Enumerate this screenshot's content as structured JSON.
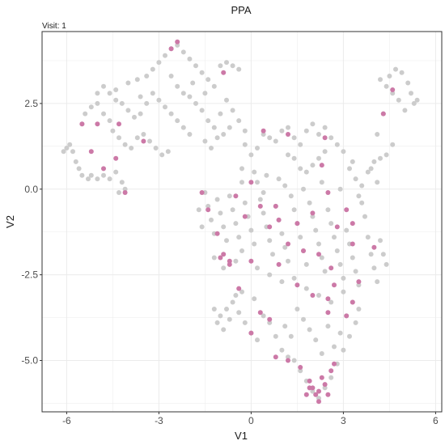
{
  "chart_data": {
    "type": "scatter",
    "title": "PPA",
    "subtitle": "Visit: 1",
    "xlabel": "V1",
    "ylabel": "V2",
    "xlim": [
      -6.8,
      6.2
    ],
    "ylim": [
      -6.5,
      4.6
    ],
    "xticks": [
      -6,
      -3,
      0,
      3,
      6
    ],
    "xtick_labels": [
      "-6",
      "-3",
      "0",
      "3",
      "6"
    ],
    "yticks": [
      -5.0,
      -2.5,
      0.0,
      2.5
    ],
    "ytick_labels": [
      "-5.0",
      "-2.5",
      "0.0",
      "2.5"
    ],
    "grid": true,
    "legend": "none",
    "colors": {
      "background": "#cccccc",
      "highlight": "#cc79a7",
      "grid": "#ebebeb",
      "panel_border": "#333333"
    },
    "background_points": [
      [
        -6.0,
        1.2
      ],
      [
        -6.1,
        1.1
      ],
      [
        -5.9,
        1.3
      ],
      [
        -5.8,
        1.1
      ],
      [
        -5.7,
        0.8
      ],
      [
        -5.6,
        0.6
      ],
      [
        -5.5,
        0.4
      ],
      [
        -5.3,
        0.3
      ],
      [
        -5.2,
        0.4
      ],
      [
        -5.0,
        0.3
      ],
      [
        -4.8,
        0.4
      ],
      [
        -4.6,
        0.3
      ],
      [
        -4.4,
        0.5
      ],
      [
        -4.2,
        0.2
      ],
      [
        -4.1,
        0.0
      ],
      [
        -4.3,
        -0.1
      ],
      [
        -5.5,
        1.9
      ],
      [
        -5.4,
        2.2
      ],
      [
        -5.2,
        2.4
      ],
      [
        -5.0,
        2.5
      ],
      [
        -4.8,
        2.2
      ],
      [
        -4.6,
        2.0
      ],
      [
        -4.5,
        1.7
      ],
      [
        -4.3,
        1.5
      ],
      [
        -4.1,
        1.3
      ],
      [
        -3.9,
        1.2
      ],
      [
        -3.7,
        1.5
      ],
      [
        -3.5,
        1.6
      ],
      [
        -3.3,
        1.4
      ],
      [
        -3.1,
        1.2
      ],
      [
        -2.9,
        1.0
      ],
      [
        -2.7,
        1.1
      ],
      [
        -5.0,
        2.8
      ],
      [
        -4.8,
        3.0
      ],
      [
        -4.6,
        2.8
      ],
      [
        -4.4,
        2.6
      ],
      [
        -4.2,
        2.5
      ],
      [
        -4.0,
        2.3
      ],
      [
        -3.8,
        2.1
      ],
      [
        -3.6,
        2.2
      ],
      [
        -4.0,
        3.1
      ],
      [
        -3.7,
        3.2
      ],
      [
        -3.4,
        3.3
      ],
      [
        -3.2,
        3.5
      ],
      [
        -3.0,
        3.7
      ],
      [
        -2.8,
        3.9
      ],
      [
        -2.6,
        4.1
      ],
      [
        -2.4,
        4.2
      ],
      [
        -2.2,
        4.0
      ],
      [
        -2.0,
        3.8
      ],
      [
        -1.8,
        3.6
      ],
      [
        -1.6,
        3.4
      ],
      [
        -1.4,
        3.2
      ],
      [
        -1.2,
        3.0
      ],
      [
        -1.0,
        3.6
      ],
      [
        -0.8,
        3.7
      ],
      [
        -0.6,
        3.6
      ],
      [
        -0.4,
        3.5
      ],
      [
        -3.2,
        2.8
      ],
      [
        -3.0,
        2.6
      ],
      [
        -2.8,
        2.4
      ],
      [
        -2.6,
        2.2
      ],
      [
        -2.4,
        2.0
      ],
      [
        -2.2,
        1.8
      ],
      [
        -2.0,
        1.6
      ],
      [
        -1.8,
        2.5
      ],
      [
        -1.6,
        2.3
      ],
      [
        -1.4,
        2.0
      ],
      [
        -1.2,
        1.8
      ],
      [
        -1.0,
        2.2
      ],
      [
        -0.8,
        2.6
      ],
      [
        -0.6,
        2.3
      ],
      [
        -0.4,
        2.0
      ],
      [
        -0.2,
        1.7
      ],
      [
        -1.5,
        1.4
      ],
      [
        -1.3,
        1.2
      ],
      [
        -1.1,
        1.5
      ],
      [
        -0.9,
        1.6
      ],
      [
        -0.7,
        1.8
      ],
      [
        -3.6,
        2.7
      ],
      [
        -3.4,
        2.5
      ],
      [
        -4.4,
        2.9
      ],
      [
        -2.6,
        3.3
      ],
      [
        -2.4,
        3.0
      ],
      [
        -2.2,
        2.8
      ],
      [
        -2.0,
        2.7
      ],
      [
        -1.9,
        3.1
      ],
      [
        -1.5,
        2.8
      ],
      [
        0.4,
        1.6
      ],
      [
        0.6,
        1.5
      ],
      [
        0.8,
        1.4
      ],
      [
        1.0,
        1.7
      ],
      [
        1.2,
        1.8
      ],
      [
        1.4,
        1.5
      ],
      [
        1.6,
        1.3
      ],
      [
        1.8,
        1.7
      ],
      [
        2.0,
        1.9
      ],
      [
        2.2,
        1.6
      ],
      [
        2.4,
        1.8
      ],
      [
        2.6,
        1.5
      ],
      [
        2.8,
        1.3
      ],
      [
        3.0,
        1.1
      ],
      [
        2.4,
        1.1
      ],
      [
        2.2,
        0.9
      ],
      [
        2.0,
        0.7
      ],
      [
        1.8,
        0.5
      ],
      [
        1.6,
        0.6
      ],
      [
        1.4,
        0.9
      ],
      [
        1.2,
        1.0
      ],
      [
        0.2,
        1.2
      ],
      [
        0.0,
        1.0
      ],
      [
        -0.2,
        1.3
      ],
      [
        3.2,
        0.6
      ],
      [
        3.4,
        0.3
      ],
      [
        3.6,
        0.1
      ],
      [
        3.8,
        0.5
      ],
      [
        4.0,
        0.8
      ],
      [
        4.2,
        0.9
      ],
      [
        4.4,
        1.0
      ],
      [
        4.6,
        1.3
      ],
      [
        4.3,
        2.2
      ],
      [
        4.5,
        3.3
      ],
      [
        4.7,
        3.5
      ],
      [
        4.9,
        3.4
      ],
      [
        5.1,
        3.1
      ],
      [
        5.2,
        2.8
      ],
      [
        5.3,
        2.5
      ],
      [
        5.0,
        2.3
      ],
      [
        4.8,
        2.6
      ],
      [
        4.6,
        2.8
      ],
      [
        4.4,
        3.0
      ],
      [
        4.2,
        3.2
      ],
      [
        5.4,
        2.6
      ],
      [
        4.1,
        1.6
      ],
      [
        3.9,
        0.6
      ],
      [
        3.3,
        0.8
      ],
      [
        -1.5,
        -0.1
      ],
      [
        -1.4,
        -0.5
      ],
      [
        -1.3,
        -0.9
      ],
      [
        -1.2,
        -1.3
      ],
      [
        -1.1,
        -0.3
      ],
      [
        -1.0,
        -0.7
      ],
      [
        -0.9,
        -1.1
      ],
      [
        -0.8,
        -1.5
      ],
      [
        -0.7,
        -0.2
      ],
      [
        -0.6,
        -0.6
      ],
      [
        -0.5,
        -1.0
      ],
      [
        -0.4,
        -1.4
      ],
      [
        -0.3,
        -1.8
      ],
      [
        -0.2,
        -0.4
      ],
      [
        -0.1,
        -0.8
      ],
      [
        0.0,
        -1.2
      ],
      [
        0.1,
        -1.6
      ],
      [
        0.2,
        0.2
      ],
      [
        0.3,
        -0.3
      ],
      [
        0.4,
        -0.7
      ],
      [
        0.5,
        -1.1
      ],
      [
        0.6,
        -1.5
      ],
      [
        0.7,
        -1.9
      ],
      [
        0.8,
        -0.5
      ],
      [
        0.9,
        -0.9
      ],
      [
        1.0,
        -1.3
      ],
      [
        1.1,
        -1.7
      ],
      [
        1.2,
        -2.1
      ],
      [
        1.3,
        -0.2
      ],
      [
        1.4,
        -0.6
      ],
      [
        1.5,
        -1.0
      ],
      [
        1.6,
        -1.4
      ],
      [
        1.7,
        -1.8
      ],
      [
        1.8,
        -2.2
      ],
      [
        1.9,
        -0.4
      ],
      [
        2.0,
        -0.8
      ],
      [
        2.1,
        -1.2
      ],
      [
        2.2,
        -1.6
      ],
      [
        2.3,
        -2.0
      ],
      [
        2.4,
        -2.4
      ],
      [
        2.5,
        -0.6
      ],
      [
        2.6,
        -1.0
      ],
      [
        2.7,
        -1.4
      ],
      [
        2.8,
        -1.8
      ],
      [
        2.9,
        -2.2
      ],
      [
        3.0,
        -2.6
      ],
      [
        3.1,
        -1.2
      ],
      [
        3.2,
        -1.6
      ],
      [
        3.3,
        -2.0
      ],
      [
        3.4,
        -2.4
      ],
      [
        3.5,
        -2.8
      ],
      [
        3.6,
        -0.4
      ],
      [
        3.7,
        -0.8
      ],
      [
        3.8,
        -1.4
      ],
      [
        3.9,
        -1.9
      ],
      [
        4.0,
        -2.3
      ],
      [
        4.1,
        -2.7
      ],
      [
        4.2,
        -1.5
      ],
      [
        4.3,
        -1.9
      ],
      [
        4.4,
        -2.2
      ],
      [
        -1.2,
        -2.0
      ],
      [
        -0.9,
        -2.3
      ],
      [
        -0.5,
        -2.1
      ],
      [
        0.2,
        -2.3
      ],
      [
        0.6,
        -2.5
      ],
      [
        1.0,
        -2.7
      ],
      [
        1.4,
        -2.6
      ],
      [
        1.8,
        -2.9
      ],
      [
        2.2,
        -3.1
      ],
      [
        2.6,
        -3.3
      ],
      [
        3.0,
        -3.0
      ],
      [
        -0.3,
        0.6
      ],
      [
        0.1,
        0.5
      ],
      [
        0.5,
        0.4
      ],
      [
        0.9,
        0.3
      ],
      [
        -1.7,
        -0.6
      ],
      [
        -1.6,
        -1.1
      ],
      [
        -0.3,
        -3.0
      ],
      [
        -0.5,
        -3.1
      ],
      [
        0.1,
        -3.2
      ],
      [
        -1.0,
        -3.7
      ],
      [
        -0.8,
        -3.5
      ],
      [
        -0.6,
        -3.3
      ],
      [
        -0.4,
        -3.6
      ],
      [
        -0.2,
        -3.9
      ],
      [
        0.0,
        -4.2
      ],
      [
        0.2,
        -4.4
      ],
      [
        -1.1,
        -3.9
      ],
      [
        -0.9,
        -4.1
      ],
      [
        -1.2,
        -3.5
      ],
      [
        -0.7,
        -3.8
      ],
      [
        0.4,
        -3.7
      ],
      [
        0.6,
        -3.9
      ],
      [
        0.8,
        -4.3
      ],
      [
        1.0,
        -4.7
      ],
      [
        1.2,
        -4.9
      ],
      [
        1.4,
        -5.0
      ],
      [
        1.6,
        -5.3
      ],
      [
        1.8,
        -5.6
      ],
      [
        2.0,
        -5.9
      ],
      [
        2.2,
        -6.1
      ],
      [
        2.4,
        -5.8
      ],
      [
        2.6,
        -5.5
      ],
      [
        2.8,
        -5.1
      ],
      [
        3.0,
        -4.7
      ],
      [
        3.2,
        -4.3
      ],
      [
        3.4,
        -3.9
      ],
      [
        3.1,
        -3.7
      ],
      [
        2.9,
        -4.2
      ],
      [
        2.7,
        -4.6
      ],
      [
        1.5,
        -3.5
      ],
      [
        1.7,
        -3.8
      ],
      [
        1.9,
        -4.1
      ],
      [
        2.1,
        -4.4
      ],
      [
        2.3,
        -4.8
      ],
      [
        1.3,
        -4.3
      ],
      [
        1.1,
        -4.0
      ],
      [
        3.5,
        -3.5
      ],
      [
        3.3,
        -3.3
      ],
      [
        2.5,
        -4.0
      ],
      [
        -0.3,
        0.2
      ],
      [
        0.4,
        -0.1
      ],
      [
        1.1,
        0.1
      ],
      [
        1.7,
        0.0
      ],
      [
        2.3,
        0.2
      ],
      [
        2.9,
        0.0
      ],
      [
        3.5,
        -0.2
      ],
      [
        4.1,
        0.2
      ]
    ],
    "highlight_points": [
      [
        -5.5,
        1.9
      ],
      [
        -5.2,
        1.1
      ],
      [
        -5.0,
        1.9
      ],
      [
        -4.8,
        0.6
      ],
      [
        -4.4,
        0.9
      ],
      [
        -4.1,
        -0.1
      ],
      [
        -4.3,
        1.9
      ],
      [
        -3.5,
        1.4
      ],
      [
        -2.6,
        4.1
      ],
      [
        -2.4,
        4.3
      ],
      [
        -0.9,
        3.4
      ],
      [
        0.4,
        1.7
      ],
      [
        1.2,
        1.6
      ],
      [
        2.4,
        1.5
      ],
      [
        4.3,
        2.2
      ],
      [
        4.6,
        2.9
      ],
      [
        -1.6,
        -0.1
      ],
      [
        -1.4,
        -0.6
      ],
      [
        -1.1,
        -1.3
      ],
      [
        -0.9,
        -1.9
      ],
      [
        -0.7,
        -2.1
      ],
      [
        -0.5,
        -0.2
      ],
      [
        -0.2,
        -0.8
      ],
      [
        0.0,
        0.2
      ],
      [
        0.3,
        -0.5
      ],
      [
        0.6,
        -1.1
      ],
      [
        0.8,
        -0.5
      ],
      [
        0.9,
        -0.9
      ],
      [
        1.2,
        -1.6
      ],
      [
        1.5,
        -1.0
      ],
      [
        1.7,
        -1.8
      ],
      [
        2.0,
        -0.7
      ],
      [
        2.2,
        -1.9
      ],
      [
        2.5,
        -0.1
      ],
      [
        2.6,
        -2.3
      ],
      [
        2.8,
        -1.1
      ],
      [
        3.1,
        -0.6
      ],
      [
        3.3,
        -1.6
      ],
      [
        3.5,
        -2.7
      ],
      [
        4.0,
        -1.7
      ],
      [
        -1.0,
        -2.0
      ],
      [
        -0.7,
        -2.2
      ],
      [
        0.0,
        -2.1
      ],
      [
        0.9,
        -2.2
      ],
      [
        1.5,
        -2.8
      ],
      [
        2.0,
        -3.1
      ],
      [
        2.7,
        -2.8
      ],
      [
        -0.4,
        -2.9
      ],
      [
        0.3,
        -3.6
      ],
      [
        0.6,
        -3.8
      ],
      [
        0.0,
        -4.2
      ],
      [
        0.8,
        -4.9
      ],
      [
        1.2,
        -5.0
      ],
      [
        1.6,
        -5.2
      ],
      [
        1.9,
        -5.6
      ],
      [
        2.0,
        -5.8
      ],
      [
        2.1,
        -6.0
      ],
      [
        2.2,
        -5.9
      ],
      [
        2.4,
        -5.7
      ],
      [
        2.6,
        -5.3
      ],
      [
        2.3,
        -5.5
      ],
      [
        1.8,
        -6.0
      ],
      [
        2.7,
        -5.1
      ],
      [
        2.5,
        -6.0
      ],
      [
        2.2,
        -6.2
      ],
      [
        1.9,
        -5.8
      ],
      [
        3.1,
        -3.7
      ],
      [
        3.3,
        -3.3
      ],
      [
        2.5,
        -3.2
      ],
      [
        2.5,
        -3.6
      ],
      [
        3.3,
        -1.0
      ],
      [
        2.3,
        0.7
      ]
    ]
  }
}
